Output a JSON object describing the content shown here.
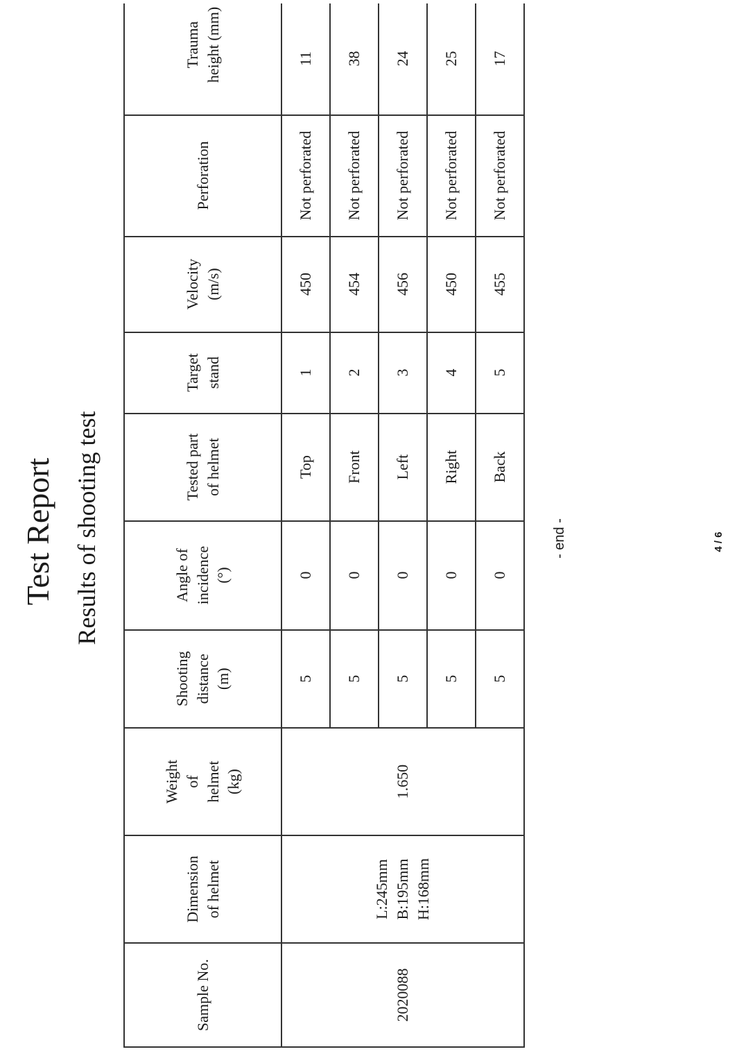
{
  "title": "Test Report",
  "subtitle": "Results of shooting test",
  "table": {
    "headers": [
      "Sample No.",
      "Dimension of helmet",
      "Weight of helmet (kg)",
      "Shooting distance (m)",
      "Angle of incidence (°)",
      "Tested part of helmet",
      "Target stand",
      "Velocity (m/s)",
      "Perforation",
      "Trauma height (mm)"
    ],
    "sample_no": "2020088",
    "dimension": [
      "L:245mm",
      "B:195mm",
      "H:168mm"
    ],
    "weight": "1.650",
    "rows": [
      {
        "distance": "5",
        "angle": "0",
        "part": "Top",
        "stand": "1",
        "velocity": "450",
        "perforation": "Not perforated",
        "trauma": "11"
      },
      {
        "distance": "5",
        "angle": "0",
        "part": "Front",
        "stand": "2",
        "velocity": "454",
        "perforation": "Not perforated",
        "trauma": "38"
      },
      {
        "distance": "5",
        "angle": "0",
        "part": "Left",
        "stand": "3",
        "velocity": "456",
        "perforation": "Not perforated",
        "trauma": "24"
      },
      {
        "distance": "5",
        "angle": "0",
        "part": "Right",
        "stand": "4",
        "velocity": "450",
        "perforation": "Not perforated",
        "trauma": "25"
      },
      {
        "distance": "5",
        "angle": "0",
        "part": "Back",
        "stand": "5",
        "velocity": "455",
        "perforation": "Not perforated",
        "trauma": "17"
      }
    ]
  },
  "end_marker": "- end -",
  "page_number": "4 / 6"
}
